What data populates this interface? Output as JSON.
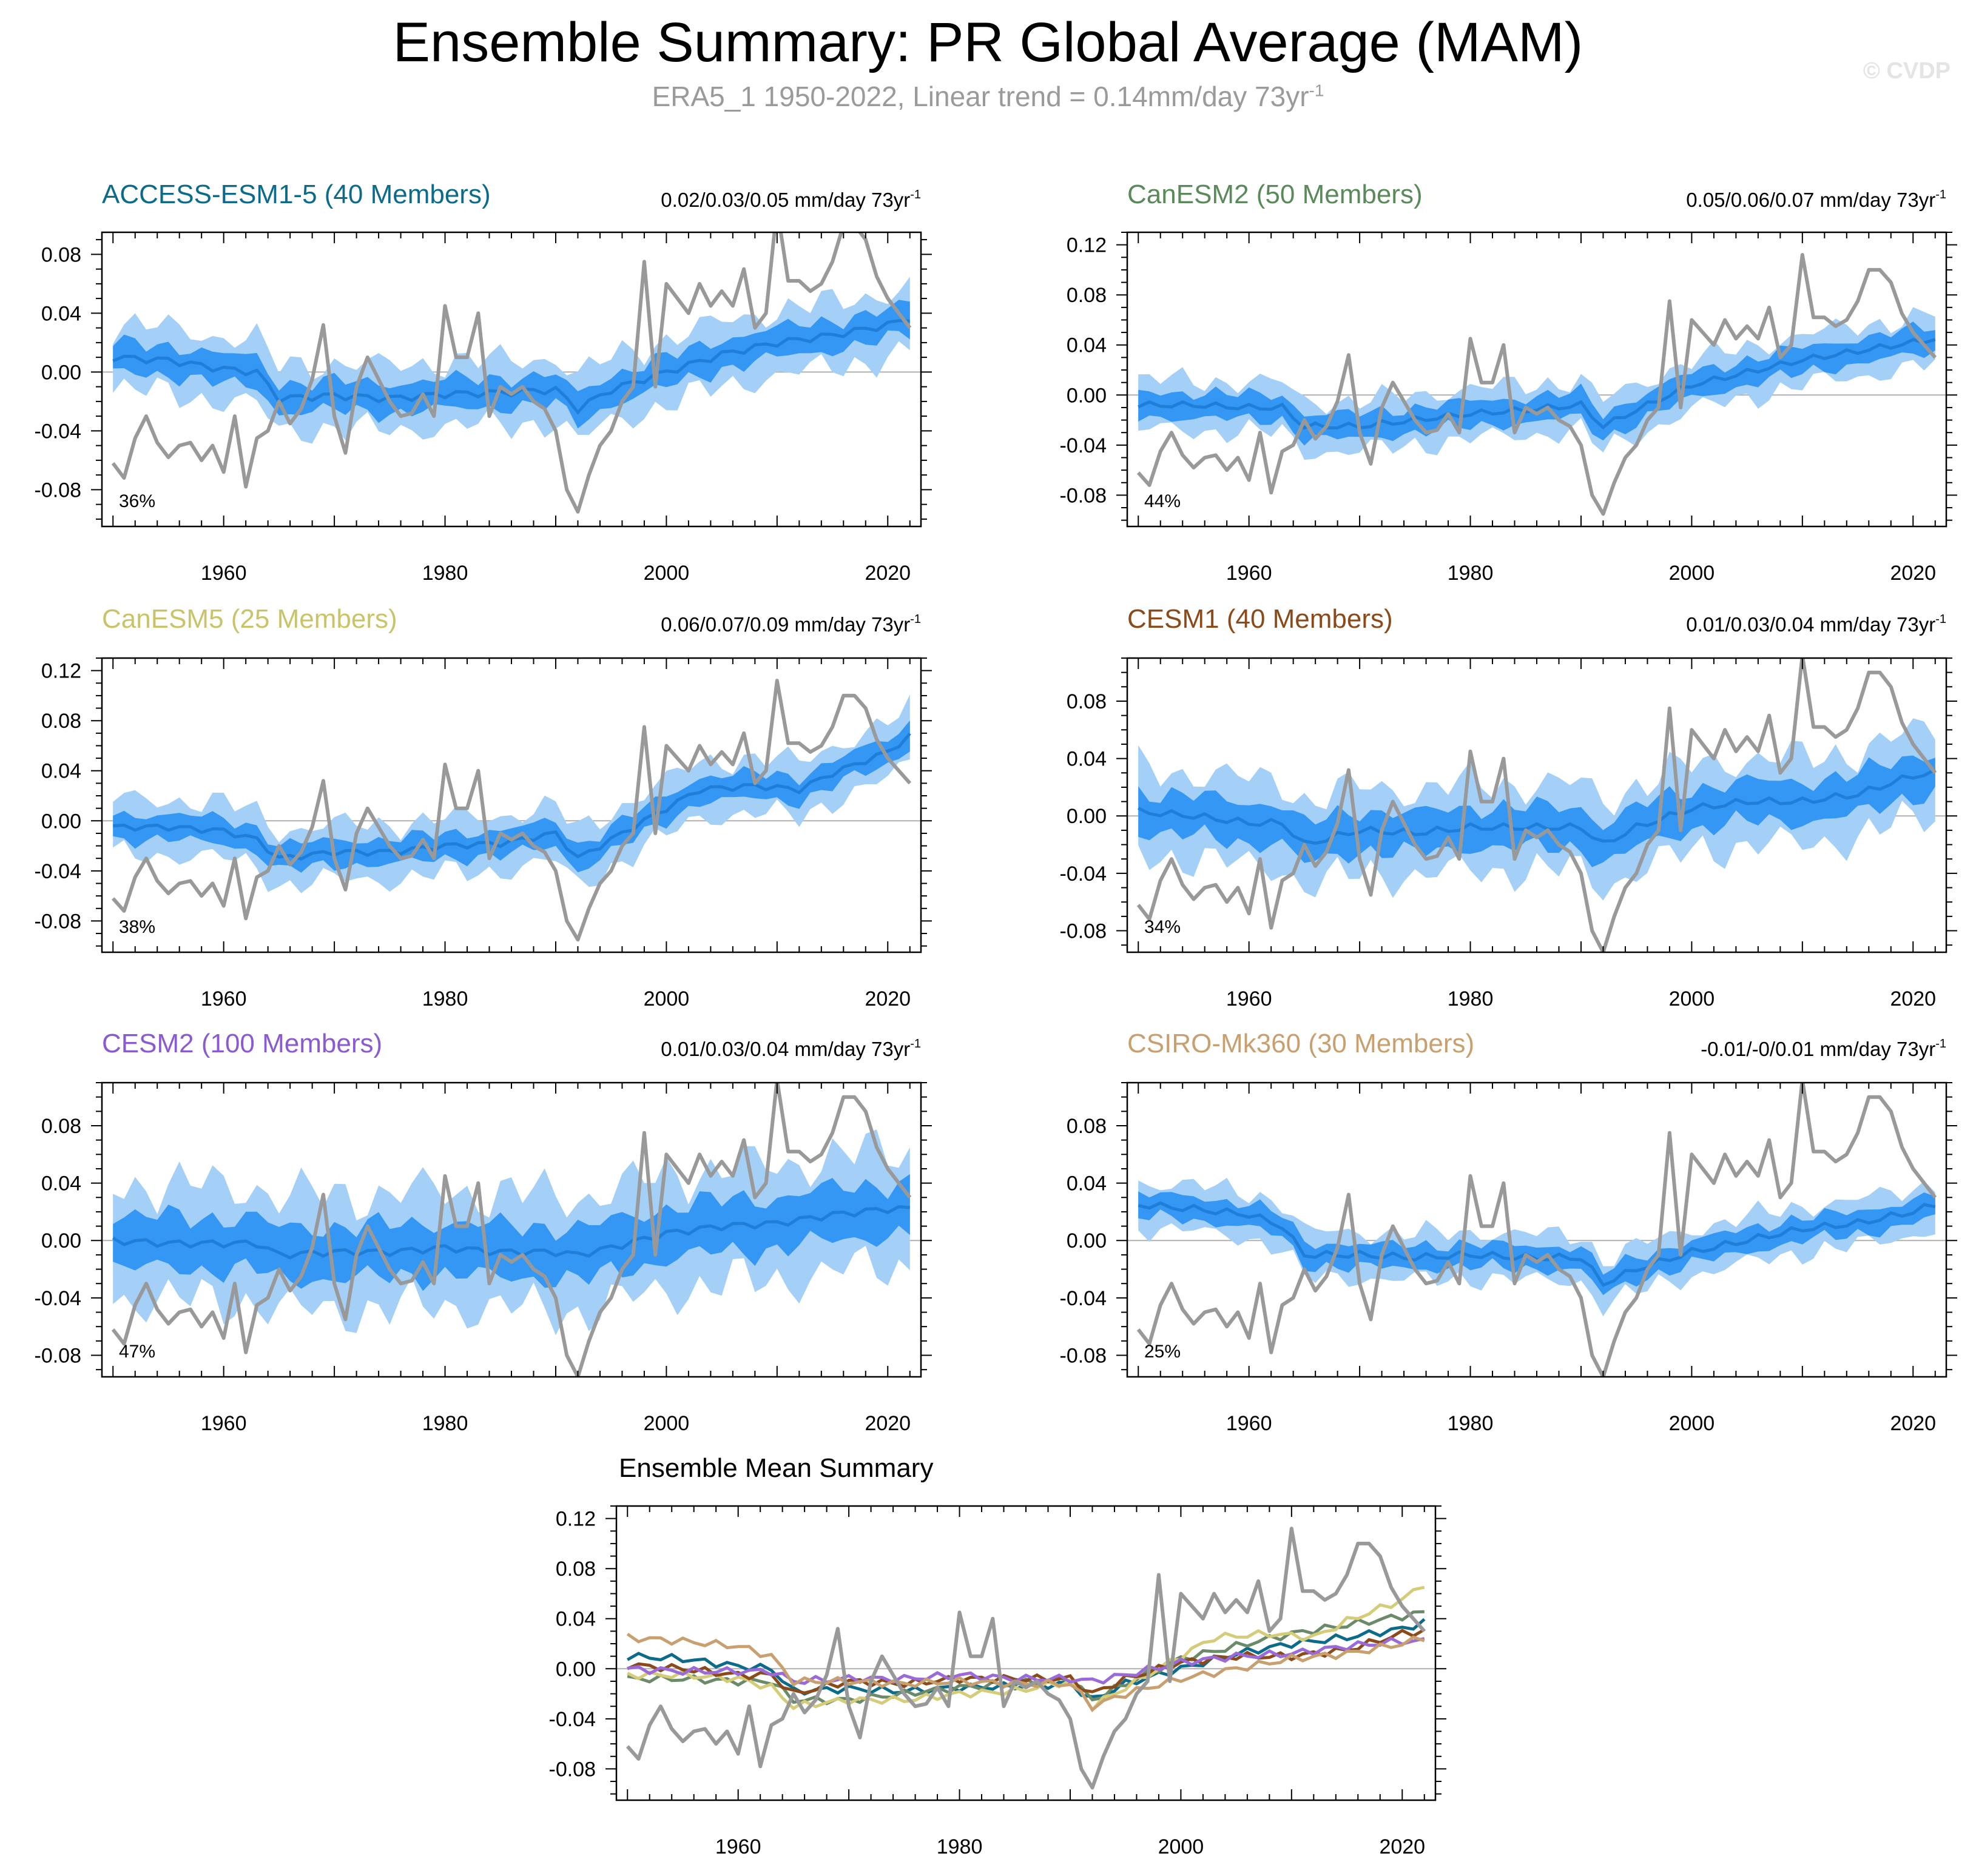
{
  "title": "Ensemble Summary: PR Global Average (MAM)",
  "subtitle": "ERA5_1 1950-2022, Linear trend = 0.14mm/day 73yr",
  "subtitle_sup": "-1",
  "watermark": "© CVDP",
  "colors": {
    "band_light": "#a4d0f8",
    "band_dark": "#3497f4",
    "mean_line": "#1f7fd8",
    "obs_line": "#999999",
    "zero_line": "#b0b0b0"
  },
  "chart_data": [
    {
      "type": "area",
      "title": "ACCESS-ESM1-5 (40 Members)",
      "title_color": "#0c6b8a",
      "trend": "0.02/0.03/0.05 mm/day 73yr",
      "trend_sup": "-1",
      "percent": "36%",
      "xlim": [
        1949,
        2023
      ],
      "ylim": [
        -0.105,
        0.095
      ],
      "xticks": [
        1960,
        1980,
        2000,
        2020
      ],
      "yticks": [
        "0.08",
        "0.04",
        "0.00",
        "-0.04",
        "-0.08"
      ],
      "mean": [
        [
          1950,
          0.01
        ],
        [
          1955,
          0.008
        ],
        [
          1960,
          0.002
        ],
        [
          1963,
          0.0
        ],
        [
          1965,
          -0.018
        ],
        [
          1970,
          -0.016
        ],
        [
          1975,
          -0.018
        ],
        [
          1980,
          -0.015
        ],
        [
          1985,
          -0.014
        ],
        [
          1990,
          -0.012
        ],
        [
          1992,
          -0.025
        ],
        [
          1995,
          -0.012
        ],
        [
          2000,
          0.0
        ],
        [
          2005,
          0.012
        ],
        [
          2010,
          0.02
        ],
        [
          2015,
          0.025
        ],
        [
          2020,
          0.032
        ],
        [
          2022,
          0.037
        ]
      ],
      "inner_half": 0.01,
      "outer_half": 0.022
    },
    {
      "type": "area",
      "title": "CanESM2 (50 Members)",
      "title_color": "#5a8a5a",
      "trend": "0.05/0.06/0.07 mm/day 73yr",
      "trend_sup": "-1",
      "percent": "44%",
      "xlim": [
        1949,
        2023
      ],
      "ylim": [
        -0.105,
        0.13
      ],
      "xticks": [
        1960,
        1980,
        2000,
        2020
      ],
      "yticks": [
        "0.12",
        "0.08",
        "0.04",
        "0.00",
        "-0.04",
        "-0.08"
      ],
      "mean": [
        [
          1950,
          -0.008
        ],
        [
          1955,
          -0.008
        ],
        [
          1960,
          -0.01
        ],
        [
          1963,
          -0.01
        ],
        [
          1965,
          -0.025
        ],
        [
          1970,
          -0.025
        ],
        [
          1975,
          -0.02
        ],
        [
          1980,
          -0.015
        ],
        [
          1985,
          -0.012
        ],
        [
          1990,
          -0.008
        ],
        [
          1992,
          -0.025
        ],
        [
          1995,
          -0.012
        ],
        [
          2000,
          0.008
        ],
        [
          2005,
          0.018
        ],
        [
          2010,
          0.028
        ],
        [
          2015,
          0.035
        ],
        [
          2020,
          0.042
        ],
        [
          2022,
          0.045
        ]
      ],
      "inner_half": 0.01,
      "outer_half": 0.02
    },
    {
      "type": "area",
      "title": "CanESM5 (25 Members)",
      "title_color": "#c9c46a",
      "trend": "0.06/0.07/0.09 mm/day 73yr",
      "trend_sup": "-1",
      "percent": "38%",
      "xlim": [
        1949,
        2023
      ],
      "ylim": [
        -0.105,
        0.13
      ],
      "xticks": [
        1960,
        1980,
        2000,
        2020
      ],
      "yticks": [
        "0.12",
        "0.08",
        "0.04",
        "0.00",
        "-0.04",
        "-0.08"
      ],
      "mean": [
        [
          1950,
          -0.005
        ],
        [
          1955,
          -0.005
        ],
        [
          1960,
          -0.008
        ],
        [
          1963,
          -0.015
        ],
        [
          1965,
          -0.03
        ],
        [
          1970,
          -0.025
        ],
        [
          1975,
          -0.025
        ],
        [
          1980,
          -0.02
        ],
        [
          1985,
          -0.018
        ],
        [
          1990,
          -0.01
        ],
        [
          1992,
          -0.03
        ],
        [
          1995,
          -0.015
        ],
        [
          2000,
          0.01
        ],
        [
          2003,
          0.025
        ],
        [
          2008,
          0.028
        ],
        [
          2012,
          0.025
        ],
        [
          2015,
          0.038
        ],
        [
          2020,
          0.055
        ],
        [
          2022,
          0.068
        ]
      ],
      "inner_half": 0.01,
      "outer_half": 0.022
    },
    {
      "type": "area",
      "title": "CESM1 (40 Members)",
      "title_color": "#8a4a1a",
      "trend": "0.01/0.03/0.04 mm/day 73yr",
      "trend_sup": "-1",
      "percent": "34%",
      "xlim": [
        1949,
        2023
      ],
      "ylim": [
        -0.095,
        0.11
      ],
      "xticks": [
        1960,
        1980,
        2000,
        2020
      ],
      "yticks": [
        "0.08",
        "0.04",
        "0.00",
        "-0.04",
        "-0.08"
      ],
      "mean": [
        [
          1950,
          0.003
        ],
        [
          1955,
          0.0
        ],
        [
          1960,
          -0.005
        ],
        [
          1963,
          -0.005
        ],
        [
          1965,
          -0.02
        ],
        [
          1970,
          -0.01
        ],
        [
          1975,
          -0.012
        ],
        [
          1980,
          -0.008
        ],
        [
          1985,
          -0.008
        ],
        [
          1990,
          -0.008
        ],
        [
          1992,
          -0.02
        ],
        [
          1995,
          -0.008
        ],
        [
          2000,
          0.005
        ],
        [
          2005,
          0.01
        ],
        [
          2010,
          0.01
        ],
        [
          2015,
          0.015
        ],
        [
          2020,
          0.028
        ],
        [
          2022,
          0.03
        ]
      ],
      "inner_half": 0.014,
      "outer_half": 0.03
    },
    {
      "type": "area",
      "title": "CESM2 (100 Members)",
      "title_color": "#8a5ad0",
      "trend": "0.01/0.03/0.04 mm/day 73yr",
      "trend_sup": "-1",
      "percent": "47%",
      "xlim": [
        1949,
        2023
      ],
      "ylim": [
        -0.095,
        0.11
      ],
      "xticks": [
        1960,
        1980,
        2000,
        2020
      ],
      "yticks": [
        "0.08",
        "0.04",
        "0.00",
        "-0.04",
        "-0.08"
      ],
      "mean": [
        [
          1950,
          0.0
        ],
        [
          1955,
          -0.002
        ],
        [
          1960,
          -0.002
        ],
        [
          1963,
          -0.002
        ],
        [
          1965,
          -0.01
        ],
        [
          1970,
          -0.008
        ],
        [
          1975,
          -0.008
        ],
        [
          1980,
          -0.005
        ],
        [
          1985,
          -0.008
        ],
        [
          1990,
          -0.008
        ],
        [
          1992,
          -0.01
        ],
        [
          1995,
          -0.005
        ],
        [
          2000,
          0.005
        ],
        [
          2005,
          0.01
        ],
        [
          2010,
          0.012
        ],
        [
          2015,
          0.018
        ],
        [
          2020,
          0.022
        ],
        [
          2022,
          0.022
        ]
      ],
      "inner_half": 0.018,
      "outer_half": 0.04
    },
    {
      "type": "area",
      "title": "CSIRO-Mk360 (30 Members)",
      "title_color": "#c8a070",
      "trend": "-0.01/-0/0.01 mm/day 73yr",
      "trend_sup": "-1",
      "percent": "25%",
      "xlim": [
        1949,
        2023
      ],
      "ylim": [
        -0.095,
        0.11
      ],
      "xticks": [
        1960,
        1980,
        2000,
        2020
      ],
      "yticks": [
        "0.08",
        "0.04",
        "0.00",
        "-0.04",
        "-0.08"
      ],
      "mean": [
        [
          1950,
          0.025
        ],
        [
          1955,
          0.022
        ],
        [
          1960,
          0.018
        ],
        [
          1963,
          0.01
        ],
        [
          1965,
          -0.01
        ],
        [
          1970,
          -0.01
        ],
        [
          1975,
          -0.012
        ],
        [
          1980,
          -0.01
        ],
        [
          1985,
          -0.012
        ],
        [
          1990,
          -0.012
        ],
        [
          1992,
          -0.03
        ],
        [
          1995,
          -0.02
        ],
        [
          2000,
          -0.008
        ],
        [
          2005,
          0.0
        ],
        [
          2010,
          0.008
        ],
        [
          2015,
          0.012
        ],
        [
          2020,
          0.02
        ],
        [
          2022,
          0.025
        ]
      ],
      "inner_half": 0.008,
      "outer_half": 0.016
    },
    {
      "type": "line",
      "title": "Ensemble Mean Summary",
      "xlim": [
        1949,
        2023
      ],
      "ylim": [
        -0.105,
        0.13
      ],
      "xticks": [
        1960,
        1980,
        2000,
        2020
      ],
      "yticks": [
        "0.12",
        "0.08",
        "0.04",
        "0.00",
        "-0.04",
        "-0.08"
      ],
      "series": [
        {
          "color": "#0c6b8a",
          "values": [
            [
              1950,
              0.01
            ],
            [
              1955,
              0.008
            ],
            [
              1960,
              0.002
            ],
            [
              1963,
              0.0
            ],
            [
              1965,
              -0.018
            ],
            [
              1970,
              -0.016
            ],
            [
              1975,
              -0.018
            ],
            [
              1980,
              -0.015
            ],
            [
              1985,
              -0.014
            ],
            [
              1990,
              -0.012
            ],
            [
              1992,
              -0.025
            ],
            [
              1995,
              -0.012
            ],
            [
              2000,
              0.0
            ],
            [
              2005,
              0.012
            ],
            [
              2010,
              0.02
            ],
            [
              2015,
              0.025
            ],
            [
              2020,
              0.032
            ],
            [
              2022,
              0.037
            ]
          ]
        },
        {
          "color": "#6a8a6a",
          "values": [
            [
              1950,
              -0.008
            ],
            [
              1955,
              -0.008
            ],
            [
              1960,
              -0.01
            ],
            [
              1963,
              -0.01
            ],
            [
              1965,
              -0.025
            ],
            [
              1970,
              -0.025
            ],
            [
              1975,
              -0.02
            ],
            [
              1980,
              -0.015
            ],
            [
              1985,
              -0.012
            ],
            [
              1990,
              -0.008
            ],
            [
              1992,
              -0.025
            ],
            [
              1995,
              -0.012
            ],
            [
              2000,
              0.008
            ],
            [
              2005,
              0.018
            ],
            [
              2010,
              0.028
            ],
            [
              2015,
              0.035
            ],
            [
              2020,
              0.042
            ],
            [
              2022,
              0.045
            ]
          ]
        },
        {
          "color": "#d4cc78",
          "values": [
            [
              1950,
              -0.005
            ],
            [
              1955,
              -0.005
            ],
            [
              1960,
              -0.008
            ],
            [
              1963,
              -0.015
            ],
            [
              1965,
              -0.03
            ],
            [
              1970,
              -0.025
            ],
            [
              1975,
              -0.025
            ],
            [
              1980,
              -0.02
            ],
            [
              1985,
              -0.018
            ],
            [
              1990,
              -0.01
            ],
            [
              1992,
              -0.03
            ],
            [
              1995,
              -0.015
            ],
            [
              2000,
              0.01
            ],
            [
              2003,
              0.025
            ],
            [
              2008,
              0.028
            ],
            [
              2012,
              0.025
            ],
            [
              2015,
              0.038
            ],
            [
              2020,
              0.055
            ],
            [
              2022,
              0.068
            ]
          ]
        },
        {
          "color": "#8a4a1a",
          "values": [
            [
              1950,
              0.003
            ],
            [
              1955,
              0.0
            ],
            [
              1960,
              -0.005
            ],
            [
              1963,
              -0.005
            ],
            [
              1965,
              -0.02
            ],
            [
              1970,
              -0.01
            ],
            [
              1975,
              -0.012
            ],
            [
              1980,
              -0.008
            ],
            [
              1985,
              -0.008
            ],
            [
              1990,
              -0.008
            ],
            [
              1992,
              -0.02
            ],
            [
              1995,
              -0.008
            ],
            [
              2000,
              0.005
            ],
            [
              2005,
              0.01
            ],
            [
              2010,
              0.01
            ],
            [
              2015,
              0.015
            ],
            [
              2020,
              0.028
            ],
            [
              2022,
              0.03
            ]
          ]
        },
        {
          "color": "#9a6ad8",
          "values": [
            [
              1950,
              0.0
            ],
            [
              1955,
              -0.002
            ],
            [
              1960,
              -0.002
            ],
            [
              1963,
              -0.002
            ],
            [
              1965,
              -0.01
            ],
            [
              1970,
              -0.008
            ],
            [
              1975,
              -0.008
            ],
            [
              1980,
              -0.005
            ],
            [
              1985,
              -0.008
            ],
            [
              1990,
              -0.008
            ],
            [
              1992,
              -0.01
            ],
            [
              1995,
              -0.005
            ],
            [
              2000,
              0.005
            ],
            [
              2005,
              0.01
            ],
            [
              2010,
              0.012
            ],
            [
              2015,
              0.018
            ],
            [
              2020,
              0.022
            ],
            [
              2022,
              0.022
            ]
          ]
        },
        {
          "color": "#c8a070",
          "values": [
            [
              1950,
              0.025
            ],
            [
              1955,
              0.022
            ],
            [
              1960,
              0.018
            ],
            [
              1963,
              0.01
            ],
            [
              1965,
              -0.01
            ],
            [
              1970,
              -0.01
            ],
            [
              1975,
              -0.012
            ],
            [
              1980,
              -0.01
            ],
            [
              1985,
              -0.012
            ],
            [
              1990,
              -0.012
            ],
            [
              1992,
              -0.03
            ],
            [
              1995,
              -0.02
            ],
            [
              2000,
              -0.008
            ],
            [
              2005,
              0.0
            ],
            [
              2010,
              0.008
            ],
            [
              2015,
              0.012
            ],
            [
              2020,
              0.02
            ],
            [
              2022,
              0.025
            ]
          ]
        }
      ]
    }
  ],
  "observed": {
    "years_start": 1950,
    "values": [
      -0.062,
      -0.072,
      -0.045,
      -0.03,
      -0.048,
      -0.058,
      -0.05,
      -0.048,
      -0.06,
      -0.05,
      -0.068,
      -0.03,
      -0.078,
      -0.045,
      -0.04,
      -0.02,
      -0.035,
      -0.025,
      -0.005,
      0.032,
      -0.03,
      -0.055,
      -0.01,
      0.01,
      -0.005,
      -0.02,
      -0.03,
      -0.028,
      -0.015,
      -0.03,
      0.045,
      0.01,
      0.01,
      0.04,
      -0.03,
      -0.01,
      -0.015,
      -0.01,
      -0.02,
      -0.025,
      -0.04,
      -0.08,
      -0.095,
      -0.07,
      -0.05,
      -0.04,
      -0.02,
      -0.01,
      0.075,
      -0.01,
      0.06,
      0.05,
      0.04,
      0.06,
      0.045,
      0.055,
      0.045,
      0.07,
      0.03,
      0.04,
      0.112,
      0.062,
      0.062,
      0.055,
      0.06,
      0.075,
      0.1,
      0.1,
      0.09,
      0.065,
      0.05,
      0.04,
      0.03
    ]
  }
}
